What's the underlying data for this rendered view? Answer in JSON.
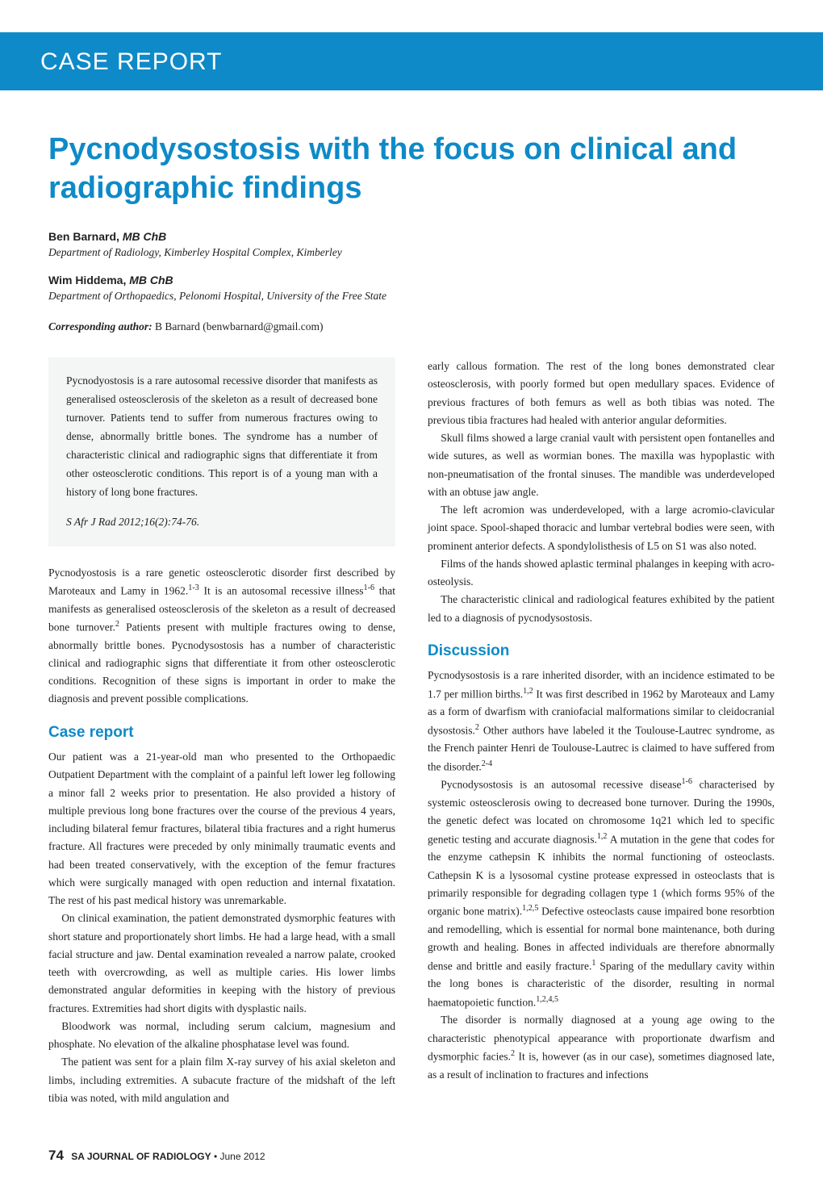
{
  "banner": {
    "label": "CASE REPORT"
  },
  "title": "Pycnodysostosis with the focus on clinical and radiographic findings",
  "authors": [
    {
      "name": "Ben Barnard, ",
      "cred": "MB ChB",
      "affil": "Department of Radiology, Kimberley Hospital Complex, Kimberley"
    },
    {
      "name": "Wim Hiddema, ",
      "cred": "MB ChB",
      "affil": "Department of Orthopaedics, Pelonomi Hospital, University of the Free State"
    }
  ],
  "corresponding": {
    "label": "Corresponding author:",
    "text": " B Barnard (benwbarnard@gmail.com)"
  },
  "abstract": {
    "body": "Pycnodyostosis is a rare autosomal recessive disorder that manifests as generalised osteosclerosis of the skeleton as a result of decreased bone turnover. Patients tend to suffer from numerous fractures owing to dense, abnormally brittle bones. The syndrome has a number of characteristic clinical and radiographic signs that differentiate it from other osteosclerotic conditions. This report is of a young man with a history of long bone fractures.",
    "citation": "S Afr J Rad 2012;16(2):74-76."
  },
  "intro_html": "Pycnodyostosis is a rare genetic osteosclerotic disorder first described by Maroteaux and Lamy in 1962.<sup>1-3</sup> It is an autosomal recessive illness<sup>1-6</sup> that manifests as generalised osteosclerosis of the skeleton as a result of decreased bone turnover.<sup>2</sup> Patients present with multiple fractures owing to dense, abnormally brittle bones. Pycnodysostosis has a number of characteristic clinical and radiographic signs that differentiate it from other osteosclerotic conditions. Recognition of these signs is important in order to make the diagnosis and prevent possible complications.",
  "sections": {
    "case_report": {
      "heading": "Case report",
      "p1": "Our patient was a 21-year-old man who presented to the Orthopaedic Outpatient Department with the complaint of a painful left lower leg following a minor fall 2 weeks prior to presentation. He also provided a history of multiple previous long bone fractures over the course of the previous 4 years, including bilateral femur fractures, bilateral tibia fractures and a right humerus fracture. All fractures were preceded by only minimally traumatic events and had been treated conservatively, with the exception of the femur fractures which were surgically managed with open reduction and internal fixatation. The rest of his past medical history was unremarkable.",
      "p2": "On clinical examination, the patient demonstrated dysmorphic features with short stature and proportionately short limbs. He had a large head, with a small facial structure and jaw. Dental examination revealed a narrow palate, crooked teeth with overcrowding, as well as multiple caries. His lower limbs demonstrated angular deformities in keeping with the history of previous fractures. Extremities had short digits with dysplastic nails.",
      "p3": "Bloodwork was normal, including serum calcium, magnesium and phosphate. No elevation of the alkaline phosphatase level was found.",
      "p4": "The patient was sent for a plain film X-ray survey of his axial skeleton and limbs, including extremities. A subacute fracture of the midshaft of the left tibia was noted, with mild angulation and",
      "p5": "early callous formation. The rest of the long bones demonstrated clear osteosclerosis, with poorly formed but open medullary spaces. Evidence of previous fractures of both femurs as well as both tibias was noted. The previous tibia fractures had healed with anterior angular deformities.",
      "p6": "Skull films showed a large cranial vault with persistent open fontanelles and wide sutures, as well as wormian bones. The maxilla was hypoplastic with non-pneumatisation of the frontal sinuses. The mandible was underdeveloped with an obtuse jaw angle.",
      "p7": "The left acromion was underdeveloped, with a large acromio-clavicular joint space. Spool-shaped thoracic and lumbar vertebral bodies were seen, with prominent anterior defects. A spondylolisthesis of L5 on S1 was also noted.",
      "p8": "Films of the hands showed aplastic terminal phalanges in keeping with acro-osteolysis.",
      "p9": "The characteristic clinical and radiological features exhibited by the patient led to a diagnosis of pycnodysostosis."
    },
    "discussion": {
      "heading": "Discussion",
      "p1_html": "Pycnodysostosis is a rare inherited disorder, with an incidence estimated to be 1.7 per million births.<sup>1,2</sup> It was first described in 1962 by Maroteaux and Lamy as a form of dwarfism with craniofacial malformations similar to cleidocranial dysostosis.<sup>2</sup> Other authors have labeled it the Toulouse-Lautrec syndrome, as the French painter Henri de Toulouse-Lautrec is claimed to have suffered from the disorder.<sup>2-4</sup>",
      "p2_html": "Pycnodysostosis is an autosomal recessive disease<sup>1-6</sup> characterised by systemic osteosclerosis owing to decreased bone turnover. During the 1990s, the genetic defect was located on chromosome 1q21 which led to specific genetic testing and accurate diagnosis.<sup>1,2</sup> A mutation in the gene that codes for the enzyme cathepsin K inhibits the normal functioning of osteoclasts. Cathepsin K is a lysosomal cystine protease expressed in osteoclasts that is primarily responsible for degrading collagen type 1 (which forms 95% of the organic bone matrix).<sup>1,2,5</sup> Defective osteoclasts cause impaired bone resorbtion and remodelling, which is essential for normal bone maintenance, both during growth and healing. Bones in affected individuals are therefore abnormally dense and brittle and easily fracture.<sup>1</sup> Sparing of the medullary cavity within the long bones is characteristic of the disorder, resulting in normal haematopoietic function.<sup>1,2,4,5</sup>",
      "p3_html": "The disorder is normally diagnosed at a young age owing to the characteristic phenotypical appearance with proportionate dwarfism and dysmorphic facies.<sup>2</sup> It is, however (as in our case), sometimes diagnosed late, as a result of inclination to fractures and infections"
    }
  },
  "footer": {
    "pagenum": "74",
    "journal": "SA JOURNAL OF RADIOLOGY",
    "sep": " • ",
    "date": "June 2012"
  },
  "style": {
    "banner_bg": "#0e8ac8",
    "title_color": "#0e8ac8",
    "abstract_bg": "#f4f5f5",
    "body_font": "Georgia, 'Times New Roman', serif",
    "sans_font": "'Helvetica Neue', Arial, sans-serif"
  }
}
